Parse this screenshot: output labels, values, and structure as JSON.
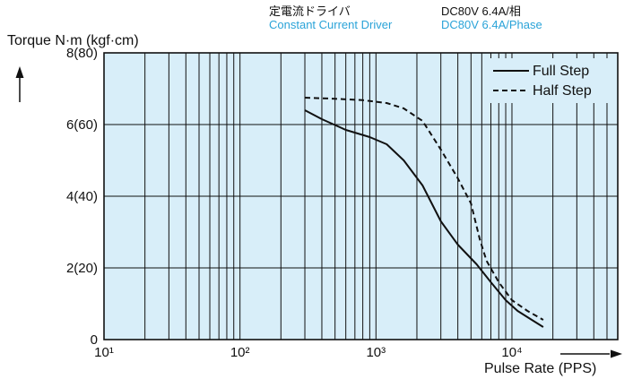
{
  "header": {
    "driver_jp": "定電流ドライバ",
    "driver_en": "Constant Current Driver",
    "spec_jp": "DC80V 6.4A/相",
    "spec_en": "DC80V 6.4A/Phase"
  },
  "colors": {
    "plot_bg": "#d8eef9",
    "header_en": "#2aa3d8",
    "grid": "#111111",
    "series": "#111111"
  },
  "chart_data": {
    "type": "line",
    "xlabel": "Pulse Rate (PPS)",
    "ylabel": "Torque N·m (kgf·cm)",
    "x_scale": "log",
    "xlim": [
      10,
      60000
    ],
    "ylim": [
      0,
      8
    ],
    "grid": true,
    "legend_position": "top-right",
    "x_ticks": [
      {
        "value": 10,
        "label": "10¹"
      },
      {
        "value": 100,
        "label": "10²"
      },
      {
        "value": 1000,
        "label": "10³"
      },
      {
        "value": 10000,
        "label": "10⁴"
      }
    ],
    "y_ticks": [
      {
        "value": 0,
        "label": "0"
      },
      {
        "value": 2,
        "label": "2(20)"
      },
      {
        "value": 4,
        "label": "4(40)"
      },
      {
        "value": 6,
        "label": "6(60)"
      },
      {
        "value": 8,
        "label": "8(80)"
      }
    ],
    "series": [
      {
        "name": "Full Step",
        "style": "solid",
        "points": [
          [
            300,
            6.4
          ],
          [
            400,
            6.15
          ],
          [
            600,
            5.85
          ],
          [
            900,
            5.65
          ],
          [
            1200,
            5.45
          ],
          [
            1600,
            5.0
          ],
          [
            2200,
            4.3
          ],
          [
            3000,
            3.3
          ],
          [
            4000,
            2.65
          ],
          [
            5500,
            2.1
          ],
          [
            7000,
            1.6
          ],
          [
            9000,
            1.1
          ],
          [
            11000,
            0.8
          ],
          [
            14000,
            0.55
          ],
          [
            17000,
            0.35
          ]
        ]
      },
      {
        "name": "Half Step",
        "style": "dashed",
        "points": [
          [
            300,
            6.75
          ],
          [
            500,
            6.72
          ],
          [
            800,
            6.68
          ],
          [
            1200,
            6.6
          ],
          [
            1600,
            6.45
          ],
          [
            2200,
            6.1
          ],
          [
            3000,
            5.3
          ],
          [
            4000,
            4.5
          ],
          [
            5000,
            3.8
          ],
          [
            5800,
            2.8
          ],
          [
            6500,
            2.2
          ],
          [
            8000,
            1.6
          ],
          [
            10000,
            1.1
          ],
          [
            13000,
            0.8
          ],
          [
            17000,
            0.55
          ]
        ]
      }
    ]
  }
}
